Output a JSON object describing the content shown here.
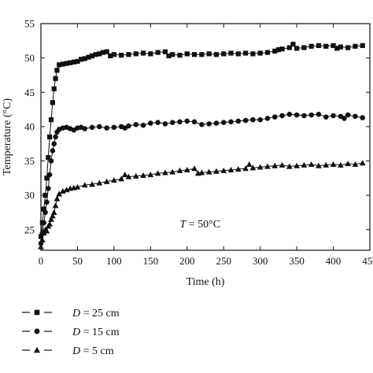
{
  "chart_data": {
    "type": "scatter",
    "xlabel": "Time (h)",
    "ylabel": "Temperature (°C)",
    "xlim": [
      0,
      450
    ],
    "ylim": [
      22,
      55
    ],
    "x_ticks": [
      0,
      50,
      100,
      150,
      200,
      250,
      300,
      350,
      400,
      450
    ],
    "y_ticks": [
      25,
      30,
      35,
      40,
      45,
      50,
      55
    ],
    "grid": false,
    "legend_position": "bottom",
    "annotation": {
      "italic_part": "T",
      "rest": " = 50°C",
      "x": 190,
      "y": 25.3
    },
    "series": [
      {
        "name": "D = 25 cm",
        "legend_italic": "D",
        "legend_rest": " = 25 cm",
        "marker": "square",
        "color": "#111111",
        "points": [
          [
            0,
            24
          ],
          [
            2,
            26
          ],
          [
            4,
            28
          ],
          [
            6,
            30
          ],
          [
            8,
            32.5
          ],
          [
            10,
            35.5
          ],
          [
            12,
            38.5
          ],
          [
            14,
            41
          ],
          [
            16,
            43.5
          ],
          [
            18,
            45.5
          ],
          [
            20,
            47
          ],
          [
            22,
            48.2
          ],
          [
            25,
            49
          ],
          [
            30,
            49.1
          ],
          [
            35,
            49.2
          ],
          [
            40,
            49.3
          ],
          [
            45,
            49.4
          ],
          [
            50,
            49.5
          ],
          [
            55,
            49.8
          ],
          [
            60,
            49.9
          ],
          [
            65,
            50.1
          ],
          [
            70,
            50.3
          ],
          [
            75,
            50.5
          ],
          [
            80,
            50.6
          ],
          [
            85,
            50.8
          ],
          [
            90,
            50.9
          ],
          [
            95,
            50.3
          ],
          [
            100,
            50.5
          ],
          [
            110,
            50.4
          ],
          [
            120,
            50.5
          ],
          [
            130,
            50.6
          ],
          [
            140,
            50.7
          ],
          [
            150,
            50.6
          ],
          [
            160,
            50.8
          ],
          [
            170,
            50.9
          ],
          [
            175,
            50.3
          ],
          [
            180,
            50.5
          ],
          [
            190,
            50.4
          ],
          [
            200,
            50.6
          ],
          [
            210,
            50.5
          ],
          [
            220,
            50.5
          ],
          [
            230,
            50.6
          ],
          [
            240,
            50.5
          ],
          [
            250,
            50.6
          ],
          [
            260,
            50.7
          ],
          [
            270,
            50.6
          ],
          [
            280,
            50.7
          ],
          [
            290,
            50.6
          ],
          [
            300,
            50.7
          ],
          [
            310,
            50.8
          ],
          [
            320,
            51
          ],
          [
            325,
            51.2
          ],
          [
            330,
            51.3
          ],
          [
            340,
            51.5
          ],
          [
            345,
            52
          ],
          [
            350,
            51.4
          ],
          [
            360,
            51.5
          ],
          [
            370,
            51.7
          ],
          [
            380,
            51.8
          ],
          [
            390,
            51.7
          ],
          [
            400,
            51.8
          ],
          [
            405,
            51.4
          ],
          [
            410,
            51.6
          ],
          [
            420,
            51.5
          ],
          [
            430,
            51.7
          ],
          [
            440,
            51.8
          ]
        ]
      },
      {
        "name": "D = 15 cm",
        "legend_italic": "D",
        "legend_rest": " = 15 cm",
        "marker": "circle",
        "color": "#111111",
        "points": [
          [
            0,
            23
          ],
          [
            2,
            24.5
          ],
          [
            4,
            26
          ],
          [
            6,
            27.5
          ],
          [
            8,
            29
          ],
          [
            10,
            31
          ],
          [
            12,
            33
          ],
          [
            14,
            35
          ],
          [
            16,
            36.5
          ],
          [
            18,
            37.5
          ],
          [
            20,
            38.5
          ],
          [
            22,
            39.2
          ],
          [
            25,
            39.6
          ],
          [
            30,
            39.8
          ],
          [
            35,
            39.9
          ],
          [
            40,
            39.7
          ],
          [
            45,
            39.5
          ],
          [
            50,
            39.8
          ],
          [
            55,
            39.9
          ],
          [
            60,
            39.7
          ],
          [
            70,
            39.9
          ],
          [
            80,
            40
          ],
          [
            90,
            39.8
          ],
          [
            100,
            39.9
          ],
          [
            110,
            40
          ],
          [
            115,
            39.8
          ],
          [
            120,
            40.1
          ],
          [
            130,
            40.3
          ],
          [
            140,
            40.2
          ],
          [
            150,
            40.5
          ],
          [
            160,
            40.6
          ],
          [
            170,
            40.4
          ],
          [
            180,
            40.6
          ],
          [
            190,
            40.7
          ],
          [
            200,
            40.8
          ],
          [
            210,
            40.7
          ],
          [
            220,
            40.3
          ],
          [
            230,
            40.4
          ],
          [
            240,
            40.5
          ],
          [
            250,
            40.6
          ],
          [
            260,
            40.7
          ],
          [
            270,
            40.8
          ],
          [
            280,
            40.9
          ],
          [
            290,
            41
          ],
          [
            300,
            41
          ],
          [
            310,
            41.2
          ],
          [
            320,
            41.4
          ],
          [
            330,
            41.6
          ],
          [
            340,
            41.8
          ],
          [
            350,
            41.7
          ],
          [
            360,
            41.6
          ],
          [
            370,
            41.7
          ],
          [
            380,
            41.8
          ],
          [
            390,
            41.4
          ],
          [
            400,
            41.6
          ],
          [
            410,
            41.5
          ],
          [
            415,
            41.2
          ],
          [
            420,
            41.7
          ],
          [
            430,
            41.5
          ],
          [
            440,
            41.3
          ]
        ]
      },
      {
        "name": "D = 5 cm",
        "legend_italic": "D",
        "legend_rest": " = 5 cm",
        "marker": "triangle",
        "color": "#111111",
        "points": [
          [
            0,
            22.5
          ],
          [
            2,
            23.5
          ],
          [
            4,
            24.5
          ],
          [
            6,
            25
          ],
          [
            8,
            24.8
          ],
          [
            10,
            25.5
          ],
          [
            12,
            25.8
          ],
          [
            14,
            26.5
          ],
          [
            16,
            27
          ],
          [
            18,
            27.5
          ],
          [
            20,
            28.5
          ],
          [
            22,
            29.5
          ],
          [
            25,
            30.2
          ],
          [
            30,
            30.6
          ],
          [
            35,
            30.8
          ],
          [
            40,
            31
          ],
          [
            45,
            31.1
          ],
          [
            50,
            31.2
          ],
          [
            60,
            31.5
          ],
          [
            70,
            31.6
          ],
          [
            80,
            31.8
          ],
          [
            90,
            32
          ],
          [
            100,
            32.2
          ],
          [
            110,
            32.4
          ],
          [
            115,
            33
          ],
          [
            120,
            32.7
          ],
          [
            130,
            32.8
          ],
          [
            140,
            32.9
          ],
          [
            150,
            33
          ],
          [
            160,
            33.2
          ],
          [
            170,
            33.3
          ],
          [
            180,
            33.4
          ],
          [
            190,
            33.6
          ],
          [
            200,
            33.7
          ],
          [
            210,
            33.9
          ],
          [
            215,
            33.2
          ],
          [
            220,
            33.3
          ],
          [
            230,
            33.4
          ],
          [
            240,
            33.5
          ],
          [
            250,
            33.6
          ],
          [
            260,
            33.7
          ],
          [
            270,
            33.8
          ],
          [
            280,
            33.9
          ],
          [
            285,
            34.5
          ],
          [
            290,
            34
          ],
          [
            300,
            34.1
          ],
          [
            310,
            34.2
          ],
          [
            320,
            34.3
          ],
          [
            330,
            34.4
          ],
          [
            340,
            34.2
          ],
          [
            350,
            34.3
          ],
          [
            360,
            34.4
          ],
          [
            370,
            34.5
          ],
          [
            380,
            34.3
          ],
          [
            390,
            34.4
          ],
          [
            400,
            34.5
          ],
          [
            410,
            34.4
          ],
          [
            420,
            34.6
          ],
          [
            430,
            34.5
          ],
          [
            440,
            34.7
          ]
        ]
      }
    ]
  }
}
